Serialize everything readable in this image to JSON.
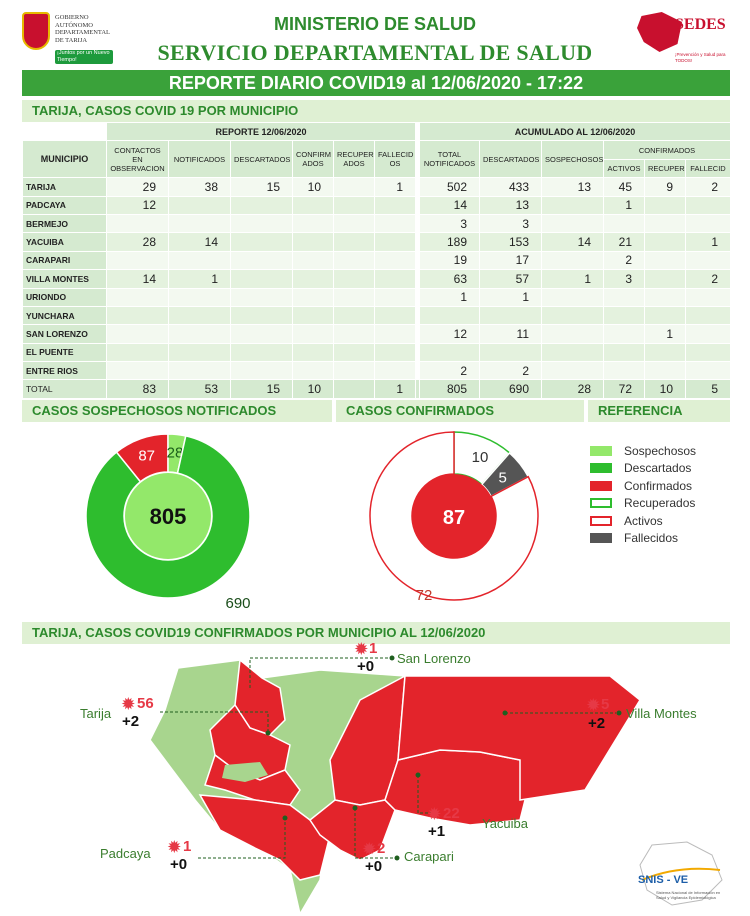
{
  "header": {
    "ministry": "MINISTERIO DE SALUD",
    "service": "SERVICIO DEPARTAMENTAL DE SALUD TARIJA",
    "report": "REPORTE DIARIO COVID19 al 12/06/2020 - 17:22",
    "gov_logo_lines": [
      "GOBIERNO",
      "AUTÓNOMO",
      "DEPARTAMENTAL",
      "DE TARIJA"
    ],
    "gov_slogan": "¡Juntos por un Nuevo Tiempo!",
    "sedes_logo": "SEDES",
    "sedes_sub": "¡Prevención y Salud para TODOS!"
  },
  "table": {
    "title": "TARIJA, CASOS COVID 19 POR MUNICIPIO",
    "group_daily": "REPORTE 12/06/2020",
    "group_cum": "ACUMULADO AL 12/06/2020",
    "group_conf": "CONFIRMADOS",
    "col_municipio": "MUNICIPIO",
    "cols_daily": [
      "CONTACTOS EN OBSERVACION",
      "NOTIFICADOS",
      "DESCARTADOS",
      "CONFIRM ADOS",
      "RECUPER ADOS",
      "FALLECID OS"
    ],
    "cols_cum": [
      "TOTAL NOTIFICADOS",
      "DESCARTADOS",
      "SOSPECHOSOS"
    ],
    "cols_conf": [
      "ACTIVOS",
      "RECUPER",
      "FALLECID"
    ],
    "rows": [
      {
        "name": "TARIJA",
        "v": [
          "29",
          "38",
          "15",
          "10",
          "",
          "1",
          "502",
          "433",
          "13",
          "45",
          "9",
          "2"
        ]
      },
      {
        "name": "PADCAYA",
        "v": [
          "12",
          "",
          "",
          "",
          "",
          "",
          "14",
          "13",
          "",
          "1",
          "",
          ""
        ]
      },
      {
        "name": "BERMEJO",
        "v": [
          "",
          "",
          "",
          "",
          "",
          "",
          "3",
          "3",
          "",
          "",
          "",
          ""
        ]
      },
      {
        "name": "YACUIBA",
        "v": [
          "28",
          "14",
          "",
          "",
          "",
          "",
          "189",
          "153",
          "14",
          "21",
          "",
          "1"
        ]
      },
      {
        "name": "CARAPARI",
        "v": [
          "",
          "",
          "",
          "",
          "",
          "",
          "19",
          "17",
          "",
          "2",
          "",
          ""
        ]
      },
      {
        "name": "VILLA MONTES",
        "v": [
          "14",
          "1",
          "",
          "",
          "",
          "",
          "63",
          "57",
          "1",
          "3",
          "",
          "2"
        ]
      },
      {
        "name": "URIONDO",
        "v": [
          "",
          "",
          "",
          "",
          "",
          "",
          "1",
          "1",
          "",
          "",
          "",
          ""
        ]
      },
      {
        "name": "YUNCHARA",
        "v": [
          "",
          "",
          "",
          "",
          "",
          "",
          "",
          "",
          "",
          "",
          "",
          ""
        ]
      },
      {
        "name": "SAN LORENZO",
        "v": [
          "",
          "",
          "",
          "",
          "",
          "",
          "12",
          "11",
          "",
          "",
          "1",
          ""
        ]
      },
      {
        "name": "EL PUENTE",
        "v": [
          "",
          "",
          "",
          "",
          "",
          "",
          "",
          "",
          "",
          "",
          "",
          ""
        ]
      },
      {
        "name": "ENTRE RIOS",
        "v": [
          "",
          "",
          "",
          "",
          "",
          "",
          "2",
          "2",
          "",
          "",
          "",
          ""
        ]
      }
    ],
    "total": {
      "name": "TOTAL",
      "v": [
        "83",
        "53",
        "15",
        "10",
        "",
        "1",
        "805",
        "690",
        "28",
        "72",
        "10",
        "5"
      ]
    }
  },
  "sections": {
    "susp": "CASOS SOSPECHOSOS NOTIFICADOS",
    "conf": "CASOS CONFIRMADOS",
    "ref": "REFERENCIA",
    "map": "TARIJA, CASOS COVID19 CONFIRMADOS POR MUNICIPIO AL 12/06/2020"
  },
  "chart_data": [
    {
      "type": "pie",
      "title": "CASOS SOSPECHOSOS NOTIFICADOS",
      "center_value": "805",
      "slices": [
        {
          "label": "Descartados",
          "value": 690,
          "color": "#2ebd2e"
        },
        {
          "label": "Confirmados",
          "value": 87,
          "color": "#e3242b"
        },
        {
          "label": "Sospechosos",
          "value": 28,
          "color": "#93e86a"
        }
      ]
    },
    {
      "type": "pie",
      "title": "CASOS CONFIRMADOS",
      "center_value": "87",
      "slices": [
        {
          "label": "Activos",
          "value": 72,
          "color": "#ffffff",
          "stroke": "#e3242b"
        },
        {
          "label": "Recuperados",
          "value": 10,
          "color": "#ffffff",
          "stroke": "#2ebd2e"
        },
        {
          "label": "Fallecidos",
          "value": 5,
          "color": "#555555"
        }
      ]
    }
  ],
  "legend": [
    {
      "label": "Sospechosos",
      "color": "#93e86a",
      "fill": true
    },
    {
      "label": "Descartados",
      "color": "#2ebd2e",
      "fill": true
    },
    {
      "label": "Confirmados",
      "color": "#e3242b",
      "fill": true
    },
    {
      "label": "Recuperados",
      "color": "#2ebd2e",
      "fill": false
    },
    {
      "label": "Activos",
      "color": "#e3242b",
      "fill": false
    },
    {
      "label": "Fallecidos",
      "color": "#555555",
      "fill": true
    }
  ],
  "map": {
    "markers": [
      {
        "name": "San Lorenzo",
        "cases": "1",
        "deaths": "+0"
      },
      {
        "name": "Tarija",
        "cases": "56",
        "deaths": "+2"
      },
      {
        "name": "Villa Montes",
        "cases": "5",
        "deaths": "+2"
      },
      {
        "name": "Yacuiba",
        "cases": "22",
        "deaths": "+1"
      },
      {
        "name": "Padcaya",
        "cases": "1",
        "deaths": "+0"
      },
      {
        "name": "Carapari",
        "cases": "2",
        "deaths": "+0"
      }
    ],
    "snis_logo": "SNIS - VE",
    "snis_sub": "Sistema Nacional de Información en Salud y Vigilancia Epidemiológica"
  }
}
